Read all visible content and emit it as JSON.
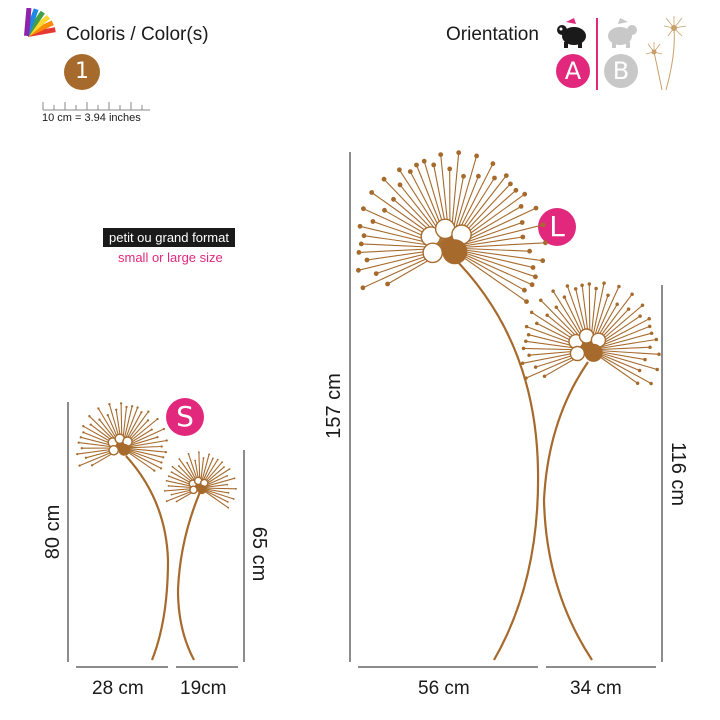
{
  "header": {
    "colors_title": "Coloris / Color(s)",
    "color_number": "1",
    "scale_label": "10 cm = 3.94 inches",
    "orientation_title": "Orientation",
    "orientation_a": "A",
    "orientation_b": "B"
  },
  "format": {
    "french": "petit ou grand format",
    "english": "small or large size"
  },
  "small": {
    "badge": "S",
    "height_left": "80 cm",
    "height_right": "65 cm",
    "width_left": "28 cm",
    "width_right": "19cm"
  },
  "large": {
    "badge": "L",
    "height_left": "157 cm",
    "height_right": "116 cm",
    "width_left": "56 cm",
    "width_right": "34 cm"
  },
  "colors": {
    "bronze": "#a66a2c",
    "pink": "#e2287d",
    "grey": "#c8c8c8",
    "dark": "#1a1a1a"
  }
}
